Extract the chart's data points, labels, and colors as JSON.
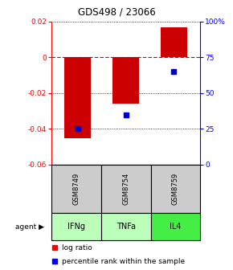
{
  "title": "GDS498 / 23066",
  "samples": [
    "GSM8749",
    "GSM8754",
    "GSM8759"
  ],
  "agents": [
    "IFNg",
    "TNFa",
    "IL4"
  ],
  "log_ratios": [
    -0.045,
    -0.026,
    0.017
  ],
  "percentile_ranks": [
    25,
    35,
    65
  ],
  "ylim_left": [
    -0.06,
    0.02
  ],
  "ylim_right": [
    0,
    100
  ],
  "yticks_left": [
    -0.06,
    -0.04,
    -0.02,
    0.0,
    0.02
  ],
  "yticks_right": [
    0,
    25,
    50,
    75,
    100
  ],
  "ytick_labels_left": [
    "-0.06",
    "-0.04",
    "-0.02",
    "0",
    "0.02"
  ],
  "ytick_labels_right": [
    "0",
    "25",
    "50",
    "75",
    "100%"
  ],
  "bar_color": "#cc0000",
  "square_color": "#0000cc",
  "zero_line_color": "#cc0000",
  "grid_color": "#000000",
  "agent_colors": [
    "#bbffbb",
    "#bbffbb",
    "#44ee44"
  ],
  "sample_bg_color": "#cccccc",
  "bar_width": 0.55,
  "legend_red": "log ratio",
  "legend_blue": "percentile rank within the sample"
}
